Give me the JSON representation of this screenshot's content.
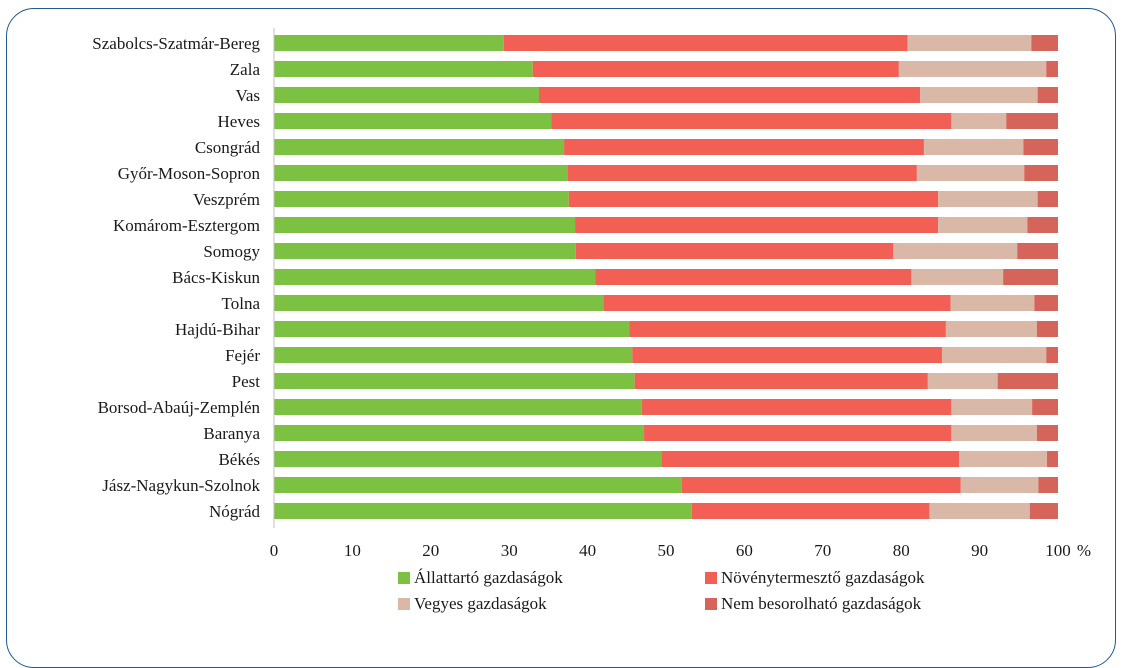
{
  "chart_data": {
    "type": "bar",
    "orientation": "horizontal",
    "stacked": true,
    "categories": [
      "Szabolcs-Szatmár-Bereg",
      "Zala",
      "Vas",
      "Heves",
      "Csongrád",
      "Győr-Moson-Sopron",
      "Veszprém",
      "Komárom-Esztergom",
      "Somogy",
      "Bács-Kiskun",
      "Tolna",
      "Hajdú-Bihar",
      "Fejér",
      "Pest",
      "Borsod-Abaúj-Zemplén",
      "Baranya",
      "Békés",
      "Jász-Nagykun-Szolnok",
      "Nógrád"
    ],
    "series": [
      {
        "name": "Állattartó gazdaságok",
        "color": "#7cc142",
        "values": [
          29.3,
          33.0,
          33.8,
          35.4,
          37.0,
          37.5,
          37.6,
          38.4,
          38.5,
          41.0,
          42.0,
          45.3,
          45.7,
          46.0,
          46.9,
          47.2,
          49.4,
          52.0,
          53.3
        ]
      },
      {
        "name": "Növénytermesztő gazdaságok",
        "color": "#f15f55",
        "values": [
          51.5,
          46.7,
          48.6,
          51.0,
          45.9,
          44.5,
          47.1,
          46.3,
          40.5,
          40.3,
          44.3,
          40.4,
          39.5,
          37.4,
          39.5,
          39.2,
          38.0,
          35.6,
          30.3
        ]
      },
      {
        "name": "Vegyes gazdaságok",
        "color": "#dab8a8",
        "values": [
          15.8,
          18.8,
          15.0,
          7.0,
          12.7,
          13.7,
          12.7,
          11.4,
          15.8,
          11.7,
          10.7,
          11.6,
          13.3,
          8.9,
          10.3,
          10.9,
          11.2,
          9.9,
          12.8
        ]
      },
      {
        "name": "Nem besorolható gazdaságok",
        "color": "#d5655a",
        "values": [
          3.4,
          1.5,
          2.6,
          6.6,
          4.4,
          4.3,
          2.6,
          3.9,
          5.2,
          7.0,
          3.0,
          2.7,
          1.5,
          7.7,
          3.3,
          2.7,
          1.4,
          2.5,
          3.6
        ]
      }
    ],
    "xlim": [
      0,
      100
    ],
    "xticks": [
      "0",
      "10",
      "20",
      "30",
      "40",
      "50",
      "60",
      "70",
      "80",
      "90",
      "100"
    ],
    "x_unit": "%",
    "grid": false,
    "legend_position": "bottom"
  }
}
